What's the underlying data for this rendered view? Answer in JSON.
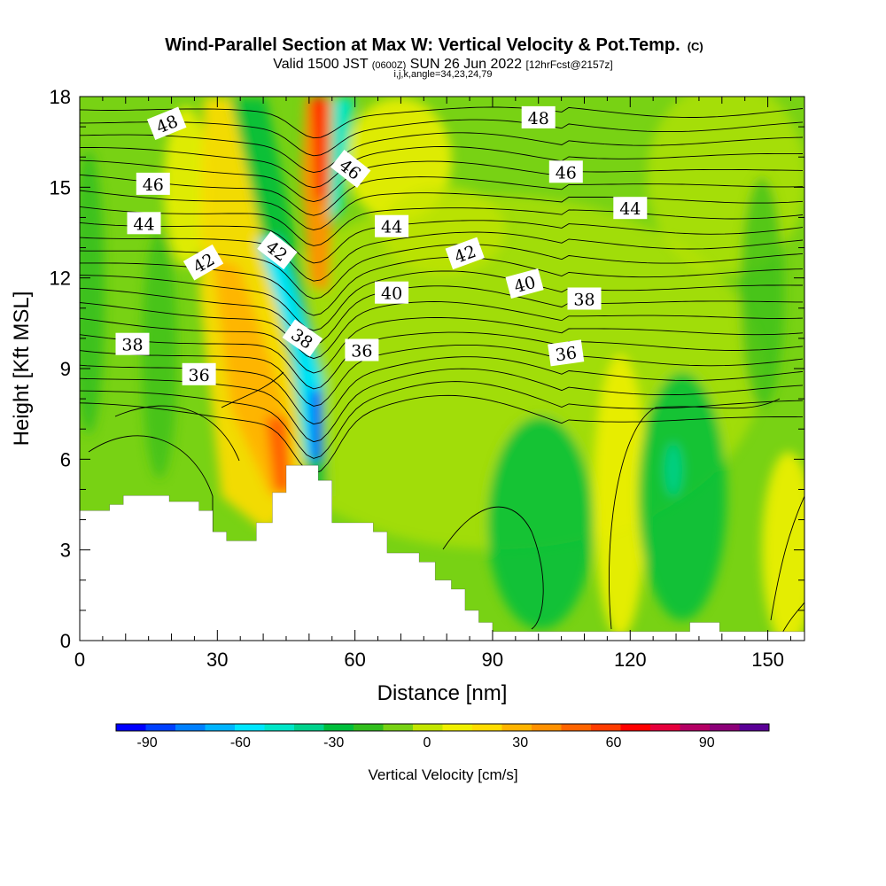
{
  "title_main": "Wind-Parallel Section at Max W: Vertical Velocity & Pot.Temp.",
  "title_copyright": "(C)",
  "subtitle_valid": "Valid 1500 JST",
  "subtitle_utc": "(0600Z)",
  "subtitle_date": "SUN 26 Jun 2022",
  "subtitle_fcst": "[12hrFcst@2157z]",
  "subtitle_indices": "i,j,k,angle=34,23,24,79",
  "chart_data": {
    "type": "contour-cross-section",
    "xlabel": "Distance [nm]",
    "ylabel": "Height [Kft MSL]",
    "xlim": [
      0,
      158
    ],
    "ylim": [
      0,
      18
    ],
    "x_ticks": [
      0,
      30,
      60,
      90,
      120,
      150
    ],
    "y_ticks": [
      0,
      3,
      6,
      9,
      12,
      15,
      18
    ],
    "colorbar": {
      "label": "Vertical Velocity [cm/s]",
      "range": [
        -100,
        110
      ],
      "step": 10,
      "tick_values": [
        -90,
        -60,
        -30,
        0,
        30,
        60,
        90
      ],
      "colors": [
        "#0000ff",
        "#0040ff",
        "#0080ff",
        "#00b4ff",
        "#00e6ff",
        "#00e6c8",
        "#00d28c",
        "#00be3c",
        "#32be1e",
        "#78d214",
        "#c3e600",
        "#f0f000",
        "#ffdc00",
        "#ffb400",
        "#ff9100",
        "#ff6400",
        "#ff3c00",
        "#ff0000",
        "#e6003c",
        "#b40064",
        "#8c0078",
        "#5a0096"
      ]
    },
    "theta_contour_labels": [
      {
        "value": "48",
        "x": 19,
        "y": 17.1
      },
      {
        "value": "46",
        "x": 16,
        "y": 15.1
      },
      {
        "value": "44",
        "x": 14,
        "y": 13.8
      },
      {
        "value": "42",
        "x": 27,
        "y": 12.5
      },
      {
        "value": "38",
        "x": 11.5,
        "y": 9.8
      },
      {
        "value": "36",
        "x": 26,
        "y": 8.8
      },
      {
        "value": "42",
        "x": 43,
        "y": 12.9
      },
      {
        "value": "38",
        "x": 48.5,
        "y": 10.0
      },
      {
        "value": "46",
        "x": 59,
        "y": 15.6
      },
      {
        "value": "44",
        "x": 68,
        "y": 13.7
      },
      {
        "value": "40",
        "x": 68,
        "y": 11.5
      },
      {
        "value": "36",
        "x": 61.5,
        "y": 9.6
      },
      {
        "value": "48",
        "x": 100,
        "y": 17.3
      },
      {
        "value": "46",
        "x": 106,
        "y": 15.5
      },
      {
        "value": "44",
        "x": 120,
        "y": 14.3
      },
      {
        "value": "42",
        "x": 84,
        "y": 12.8
      },
      {
        "value": "40",
        "x": 97,
        "y": 11.8
      },
      {
        "value": "38",
        "x": 110,
        "y": 11.3
      },
      {
        "value": "36",
        "x": 106,
        "y": 9.5
      }
    ],
    "terrain": [
      [
        0,
        4.3
      ],
      [
        6.5,
        4.3
      ],
      [
        6.5,
        4.5
      ],
      [
        9.5,
        4.5
      ],
      [
        9.5,
        4.8
      ],
      [
        19.5,
        4.8
      ],
      [
        19.5,
        4.6
      ],
      [
        26,
        4.6
      ],
      [
        26,
        4.3
      ],
      [
        29,
        4.3
      ],
      [
        29,
        3.6
      ],
      [
        32,
        3.6
      ],
      [
        32,
        3.3
      ],
      [
        38.5,
        3.3
      ],
      [
        38.5,
        3.9
      ],
      [
        42,
        3.9
      ],
      [
        42,
        4.9
      ],
      [
        45,
        4.9
      ],
      [
        45,
        5.8
      ],
      [
        52,
        5.8
      ],
      [
        52,
        5.3
      ],
      [
        55,
        5.3
      ],
      [
        55,
        3.9
      ],
      [
        64,
        3.9
      ],
      [
        64,
        3.6
      ],
      [
        67,
        3.6
      ],
      [
        67,
        2.9
      ],
      [
        74,
        2.9
      ],
      [
        74,
        2.6
      ],
      [
        77.5,
        2.6
      ],
      [
        77.5,
        2.0
      ],
      [
        81,
        2.0
      ],
      [
        81,
        1.7
      ],
      [
        84,
        1.7
      ],
      [
        84,
        1.0
      ],
      [
        87,
        1.0
      ],
      [
        87,
        0.6
      ],
      [
        90,
        0.6
      ],
      [
        90,
        0.3
      ],
      [
        133,
        0.3
      ],
      [
        133,
        0.6
      ],
      [
        139.5,
        0.6
      ],
      [
        139.5,
        0.3
      ],
      [
        158,
        0.3
      ],
      [
        158,
        0
      ]
    ]
  }
}
